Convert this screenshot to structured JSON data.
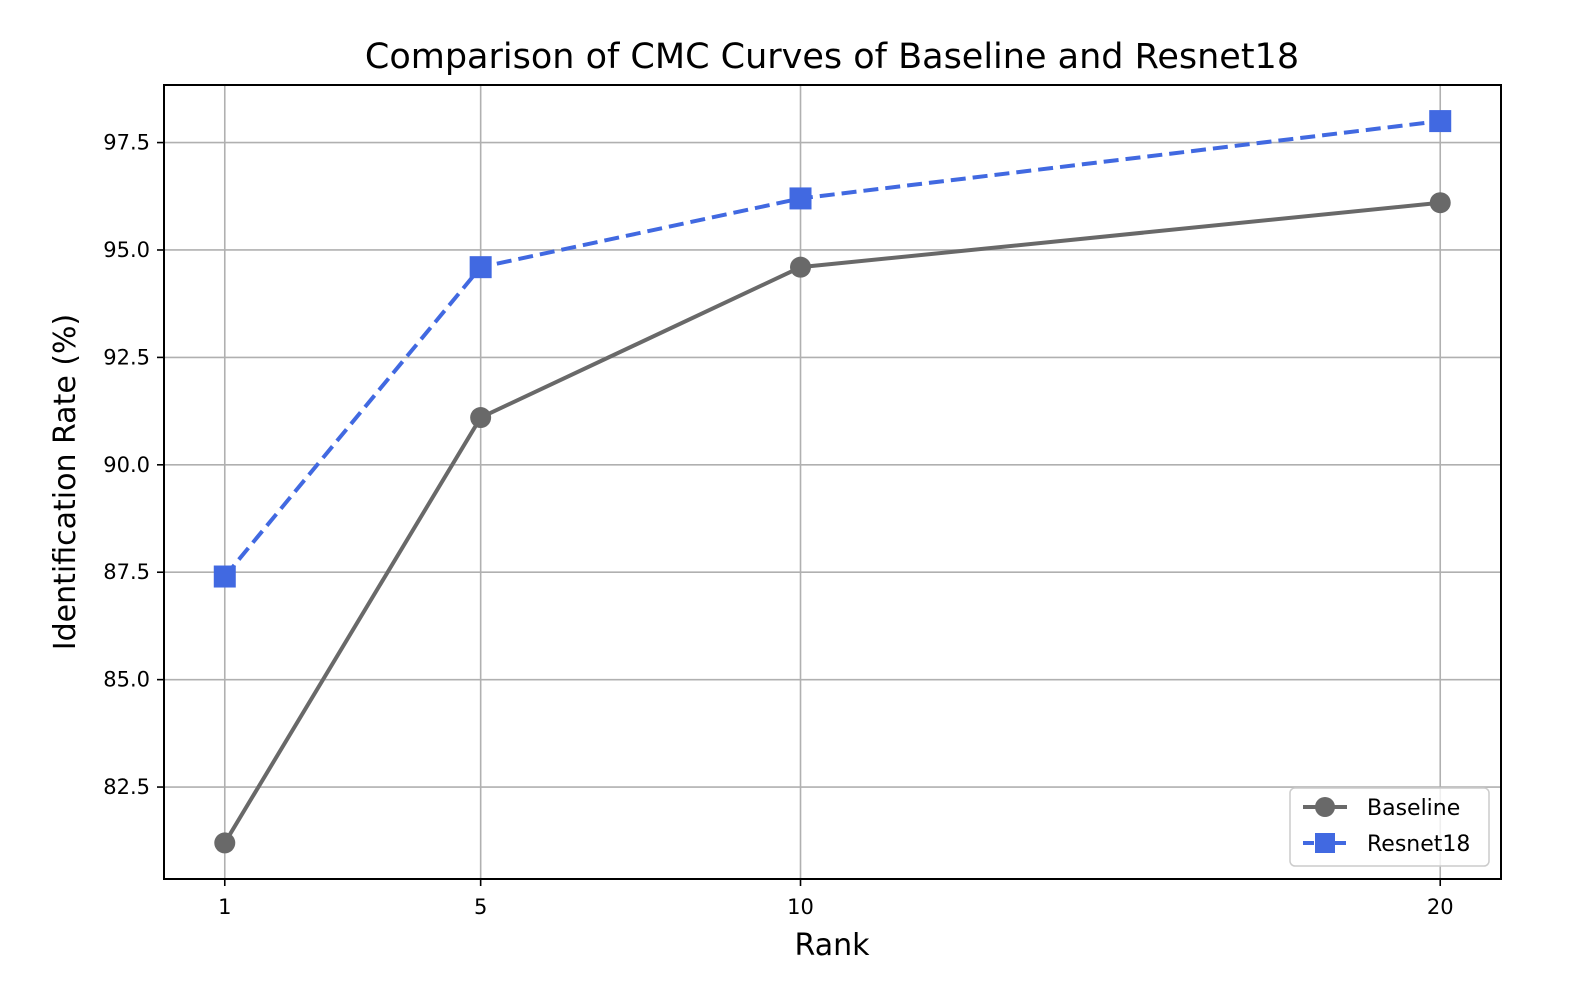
{
  "chart_data": {
    "type": "line",
    "title": "Comparison of CMC Curves of Baseline and Resnet18",
    "xlabel": "Rank",
    "ylabel": "Identification Rate (%)",
    "x": [
      1,
      5,
      10,
      20
    ],
    "x_ticks": [
      "1",
      "5",
      "10",
      "20"
    ],
    "xlim": [
      0.05,
      20.95
    ],
    "ylim": [
      80.36,
      98.84
    ],
    "y_ticks": [
      "82.5",
      "85.0",
      "87.5",
      "90.0",
      "92.5",
      "95.0",
      "97.5"
    ],
    "y_tick_values": [
      82.5,
      85.0,
      87.5,
      90.0,
      92.5,
      95.0,
      97.5
    ],
    "grid": true,
    "legend_position": "bottom-right",
    "series": [
      {
        "name": "Baseline",
        "values": [
          81.2,
          91.1,
          94.6,
          96.1
        ],
        "color": "#696969",
        "marker": "circle",
        "linestyle": "solid"
      },
      {
        "name": "Resnet18",
        "values": [
          87.4,
          94.6,
          96.2,
          98.0
        ],
        "color": "#4169e1",
        "marker": "square",
        "linestyle": "dashed"
      }
    ]
  }
}
